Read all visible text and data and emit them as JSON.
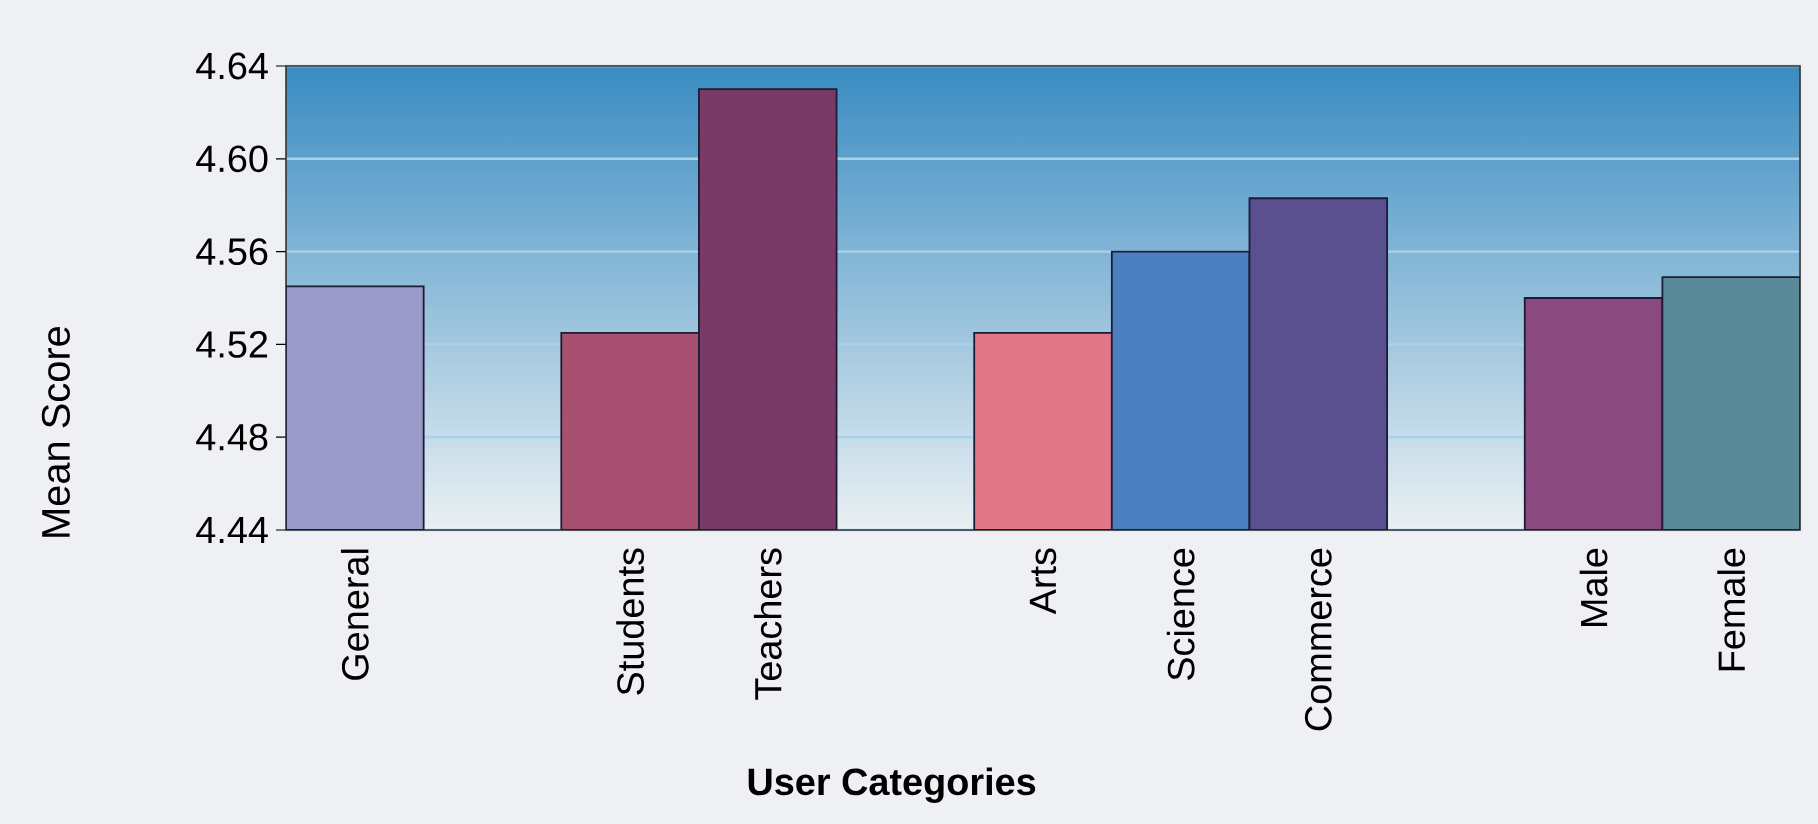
{
  "chart_data": {
    "type": "bar",
    "xlabel": "User Categories",
    "ylabel": "Mean Score",
    "categories": [
      "General",
      null,
      "Students",
      "Teachers",
      null,
      "Arts",
      "Science",
      "Commerce",
      null,
      "Male",
      "Female"
    ],
    "values": [
      4.545,
      null,
      4.525,
      4.63,
      null,
      4.525,
      4.56,
      4.583,
      null,
      4.54,
      4.549
    ],
    "colors": [
      "#9a9ac8",
      null,
      "#a85070",
      "#7a3a68",
      null,
      "#e07888",
      "#4a80c0",
      "#5a5090",
      null,
      "#8a4a80",
      "#5a8a9a"
    ],
    "ylim": [
      4.44,
      4.64
    ],
    "yticks": [
      4.44,
      4.48,
      4.52,
      4.56,
      {
        "value": 4.6,
        "label": "4.60"
      },
      4.64
    ],
    "grid": "y"
  }
}
